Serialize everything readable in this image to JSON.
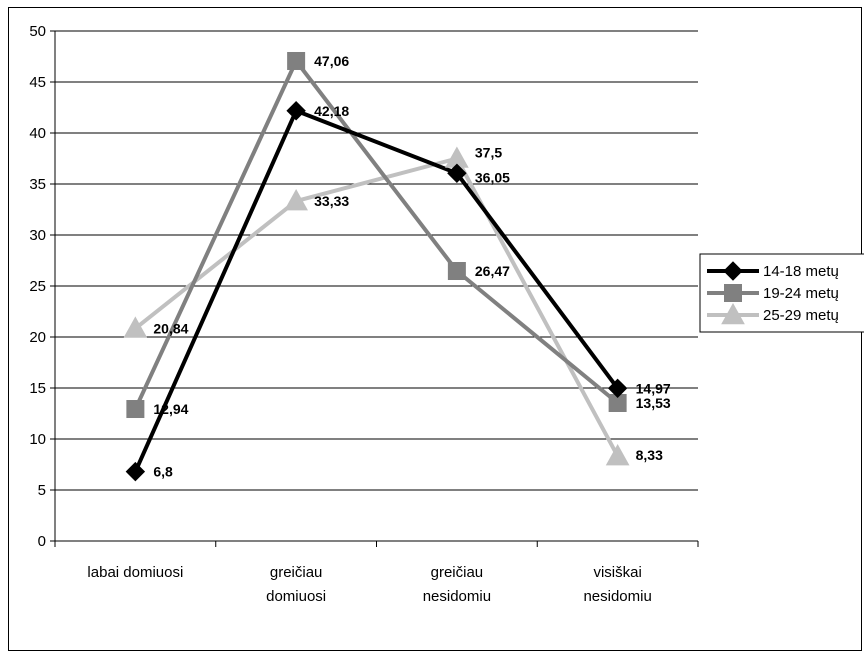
{
  "chart_data": {
    "type": "line",
    "categories": [
      [
        "labai domiuosi"
      ],
      [
        "greičiau",
        "domiuosi"
      ],
      [
        "greičiau",
        "nesidomiu"
      ],
      [
        "visiškai",
        "nesidomiu"
      ]
    ],
    "ylim": [
      0,
      50
    ],
    "yticks": [
      "0",
      "5",
      "10",
      "15",
      "20",
      "25",
      "30",
      "35",
      "40",
      "45",
      "50"
    ],
    "grid": true,
    "legend_position": "right",
    "series": [
      {
        "name": "14-18 metų",
        "values": [
          6.8,
          42.18,
          36.05,
          14.97
        ],
        "labels": [
          "6,8",
          "42,18",
          "36,05",
          "14,97"
        ],
        "color": "#000000",
        "marker": "diamond"
      },
      {
        "name": "19-24 metų",
        "values": [
          12.94,
          47.06,
          26.47,
          13.53
        ],
        "labels": [
          "12,94",
          "47,06",
          "26,47",
          "13,53"
        ],
        "color": "#808080",
        "marker": "square"
      },
      {
        "name": "25-29 metų",
        "values": [
          20.84,
          33.33,
          37.5,
          8.33
        ],
        "labels": [
          "20,84",
          "33,33",
          "37,5",
          "8,33"
        ],
        "color": "#c0c0c0",
        "marker": "triangle"
      }
    ]
  }
}
